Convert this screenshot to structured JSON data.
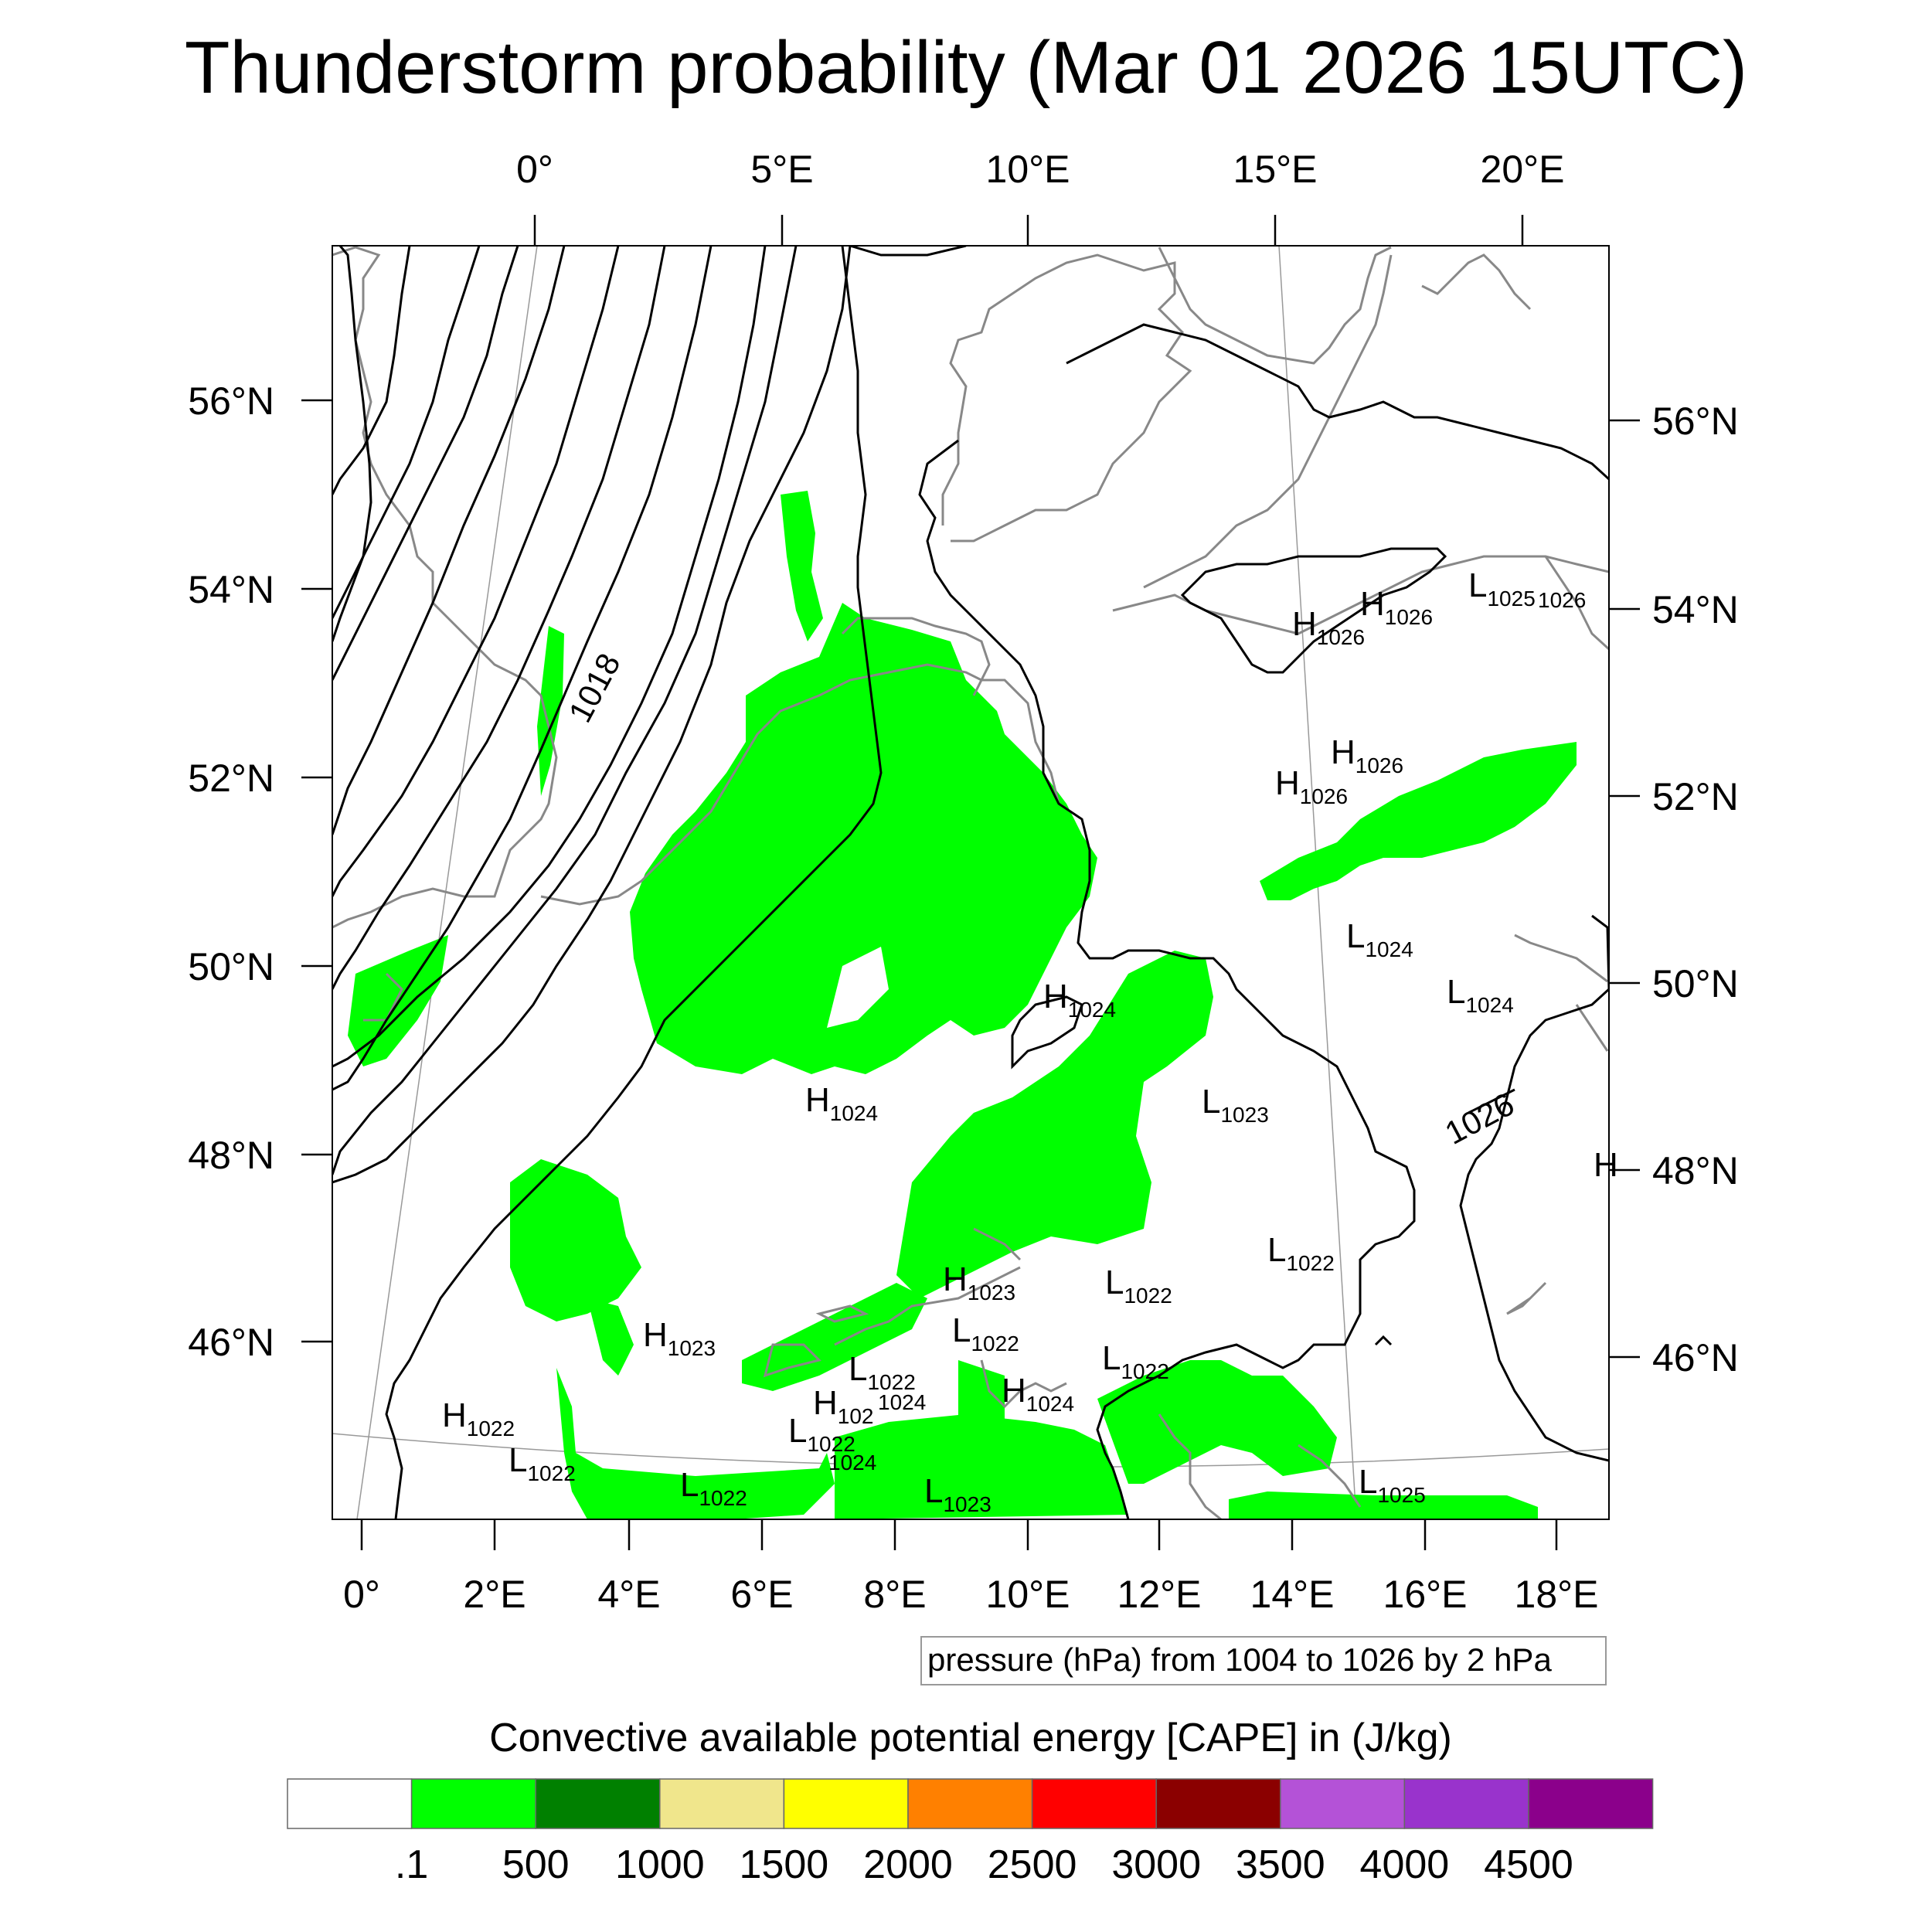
{
  "title": "Thunderstorm probability (Mar 01 2026 15UTC)",
  "top_lon_ticks": [
    "0°",
    "5°E",
    "10°E",
    "15°E",
    "20°E"
  ],
  "bottom_lon_ticks": [
    "0°",
    "2°E",
    "4°E",
    "6°E",
    "8°E",
    "10°E",
    "12°E",
    "14°E",
    "16°E",
    "18°E"
  ],
  "left_lat_ticks": [
    "56°N",
    "54°N",
    "52°N",
    "50°N",
    "48°N",
    "46°N"
  ],
  "right_lat_ticks": [
    "56°N",
    "54°N",
    "52°N",
    "50°N",
    "48°N",
    "46°N"
  ],
  "pressure_centers": [
    {
      "letter": "H",
      "value": "1026"
    },
    {
      "letter": "H",
      "value": "1026"
    },
    {
      "letter": "L",
      "value": "1025"
    },
    {
      "letter": "",
      "value": "1026"
    },
    {
      "letter": "H",
      "value": "1026"
    },
    {
      "letter": "H",
      "value": "1026"
    },
    {
      "letter": "L",
      "value": "1024"
    },
    {
      "letter": "H",
      "value": "1024"
    },
    {
      "letter": "L",
      "value": "1024"
    },
    {
      "letter": "H",
      "value": "1024"
    },
    {
      "letter": "L",
      "value": "1023"
    },
    {
      "letter": "H",
      "value": ""
    },
    {
      "letter": "L",
      "value": "1022"
    },
    {
      "letter": "H",
      "value": "1023"
    },
    {
      "letter": "L",
      "value": "1022"
    },
    {
      "letter": "H",
      "value": "1023"
    },
    {
      "letter": "L",
      "value": "1022"
    },
    {
      "letter": "L",
      "value": "1022"
    },
    {
      "letter": "L",
      "value": "1022"
    },
    {
      "letter": "H",
      "value": "102"
    },
    {
      "letter": "",
      "value": "1024"
    },
    {
      "letter": "H",
      "value": "1024"
    },
    {
      "letter": "L",
      "value": "1022"
    },
    {
      "letter": "",
      "value": "1024"
    },
    {
      "letter": "H",
      "value": "1022"
    },
    {
      "letter": "L",
      "value": "1022"
    },
    {
      "letter": "L",
      "value": "1022"
    },
    {
      "letter": "L",
      "value": "1023"
    },
    {
      "letter": "L",
      "value": "1025"
    }
  ],
  "isobar_labels": [
    "1018",
    "1026"
  ],
  "footnote": "pressure (hPa) from 1004 to 1026 by 2 hPa",
  "colorbar": {
    "title": "Convective available potential energy [CAPE] in (J/kg)",
    "colors": [
      "#FFFFFF",
      "#00FF00",
      "#008000",
      "#F0E68C",
      "#FFFF00",
      "#FF8000",
      "#FF0000",
      "#8B0000",
      "#B452D7",
      "#9933CC",
      "#8B008B"
    ],
    "labels": [
      ".1",
      "500",
      "1000",
      "1500",
      "2000",
      "2500",
      "3000",
      "3500",
      "4000",
      "4500"
    ]
  },
  "colors": {
    "cape_low": "#00FF00",
    "coast": "#888888",
    "isobar": "#000000"
  }
}
